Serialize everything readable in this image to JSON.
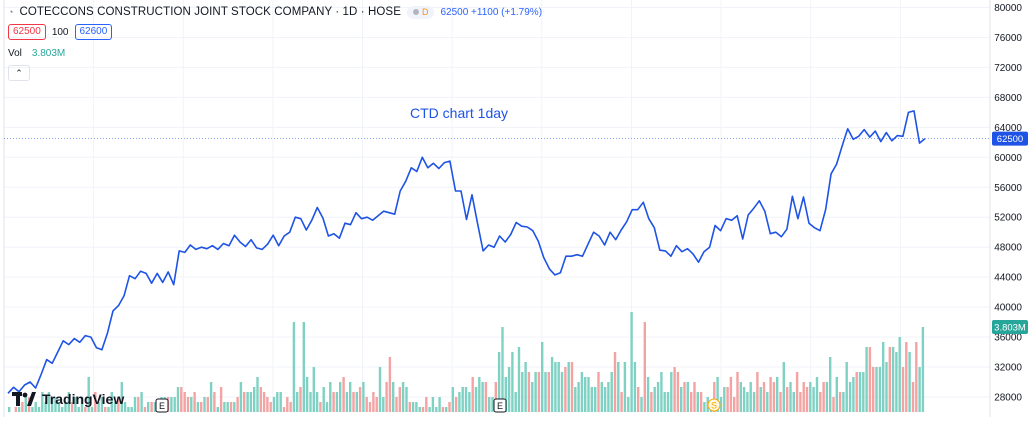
{
  "header": {
    "symbol_title": "COTECCONS CONSTRUCTION JOINT STOCK COMPANY · 1D · HOSE",
    "timeframe_badge": "D",
    "price_change": "62500 +1100 (+1.79%)",
    "bid": "62500",
    "quantity": "100",
    "ask": "62600",
    "volume_label": "Vol",
    "volume_value": "3.803M"
  },
  "annotation": "CTD chart 1day",
  "price_axis": {
    "labels": [
      "80000",
      "76000",
      "72000",
      "68000",
      "64000",
      "60000",
      "56000",
      "52000",
      "48000",
      "44000",
      "40000",
      "36000",
      "32000",
      "28000"
    ],
    "current_price_label": "62500",
    "current_volume_label": "3.803M"
  },
  "markers": [
    {
      "label": "E"
    },
    {
      "label": "E"
    },
    {
      "label": "S"
    }
  ],
  "branding": {
    "logo_text": "TradingView"
  },
  "colors": {
    "line": "#1e53e5",
    "volume_up": "#7fd1c3",
    "volume_down": "#f4a3a3",
    "price_badge": "#1e53e5",
    "volume_badge": "#26a69a"
  },
  "chart_data": {
    "type": "line",
    "series": [
      {
        "name": "CTD",
        "values": [
          28500,
          29300,
          28700,
          29600,
          30000,
          29200,
          31000,
          33000,
          32500,
          34000,
          35500,
          35000,
          35800,
          35300,
          36200,
          36000,
          34600,
          34300,
          36500,
          39500,
          40200,
          41500,
          44200,
          43800,
          44800,
          44500,
          43200,
          44500,
          43300,
          44700,
          43000,
          47500,
          47300,
          48300,
          47700,
          48000,
          47800,
          48200,
          47700,
          48500,
          48200,
          49600,
          48700,
          48100,
          49000,
          47900,
          47700,
          48400,
          49600,
          48200,
          49500,
          50000,
          52000,
          51800,
          50300,
          51600,
          53300,
          51900,
          49500,
          49800,
          49200,
          51200,
          51000,
          52600,
          51800,
          52000,
          51600,
          52200,
          52800,
          52600,
          52400,
          55500,
          56800,
          58600,
          58100,
          60000,
          58600,
          59200,
          58500,
          59300,
          59500,
          55500,
          55500,
          51700,
          55000,
          51200,
          47500,
          48300,
          48000,
          49500,
          48700,
          49700,
          51300,
          50800,
          50700,
          50200,
          48800,
          46600,
          45100,
          44300,
          44600,
          46800,
          46800,
          47000,
          46800,
          48400,
          50000,
          49500,
          48300,
          50000,
          49000,
          50300,
          51400,
          53000,
          53000,
          54000,
          51800,
          50600,
          47600,
          47500,
          46800,
          48200,
          47400,
          47800,
          47100,
          46000,
          47400,
          48000,
          50900,
          50200,
          51800,
          51600,
          52200,
          49100,
          52300,
          53200,
          54200,
          52800,
          49800,
          50000,
          49400,
          50400,
          54800,
          51800,
          54700,
          51200,
          50600,
          50200,
          53000,
          57800,
          59100,
          61500,
          63800,
          62400,
          62800,
          63700,
          62700,
          63500,
          62100,
          63300,
          62200,
          62900,
          62800,
          66000,
          66200,
          61900,
          62500
        ]
      }
    ],
    "volume": [
      1,
      0,
      1,
      1,
      2,
      3,
      3,
      1,
      2,
      1,
      4,
      2,
      4,
      3,
      3,
      2,
      1,
      2,
      4,
      2,
      3,
      1,
      3,
      1,
      7,
      1,
      4,
      2,
      3,
      1,
      1,
      4,
      2,
      3,
      6,
      2,
      1,
      1,
      3,
      3,
      4,
      1,
      2,
      2,
      2,
      1,
      3,
      3,
      3,
      3,
      3,
      5,
      5,
      4,
      3,
      3,
      4,
      2,
      2,
      3,
      3,
      6,
      4,
      1,
      5,
      2,
      2,
      2,
      2,
      3,
      6,
      4,
      4,
      4,
      5,
      7,
      5,
      4,
      3,
      2,
      3,
      4,
      4,
      1,
      3,
      2,
      18,
      4,
      5,
      18,
      7,
      4,
      9,
      4,
      2,
      5,
      2,
      6,
      4,
      4,
      6,
      7,
      4,
      6,
      4,
      4,
      5,
      6,
      3,
      2,
      4,
      3,
      9,
      3,
      6,
      11,
      6,
      3,
      5,
      6,
      5,
      2,
      2,
      2,
      1,
      1,
      3,
      1,
      3,
      1,
      3,
      1,
      1,
      2,
      5,
      3,
      4,
      5,
      5,
      4,
      7,
      5,
      7,
      6,
      6,
      3,
      3,
      6,
      12,
      17,
      7,
      9,
      12,
      4,
      13,
      8,
      10,
      8,
      6,
      8,
      8,
      14,
      8,
      8,
      11,
      10,
      10,
      8,
      9,
      10,
      10,
      5,
      6,
      8,
      7,
      7,
      5,
      5,
      8,
      6,
      5,
      6,
      8,
      12,
      10,
      4,
      10,
      3,
      20,
      10,
      5,
      3,
      18,
      7,
      4,
      5,
      6,
      8,
      4,
      4,
      8,
      9,
      8,
      5,
      6,
      6,
      4,
      6,
      4,
      4,
      2,
      3,
      2,
      6,
      7,
      3,
      5,
      5,
      7,
      3,
      8,
      6,
      5,
      4,
      6,
      4,
      8,
      5,
      6,
      4,
      7,
      6,
      7,
      4,
      10,
      5,
      6,
      4,
      8,
      4,
      6,
      5,
      6,
      5,
      7,
      4,
      6,
      6,
      11,
      3,
      7,
      4,
      4,
      10,
      6,
      7,
      8,
      8,
      8,
      13,
      13,
      9,
      9,
      9,
      14,
      10,
      13,
      13,
      12,
      15,
      9,
      14,
      12,
      6,
      14,
      9,
      17
    ],
    "volume_direction": "alternating up/down bars",
    "ylim": [
      26000,
      81000
    ],
    "y_ticks": [
      80000,
      76000,
      72000,
      68000,
      64000,
      60000,
      56000,
      52000,
      48000,
      44000,
      40000,
      36000,
      32000,
      28000
    ],
    "grid": true,
    "price_scale": "right"
  }
}
